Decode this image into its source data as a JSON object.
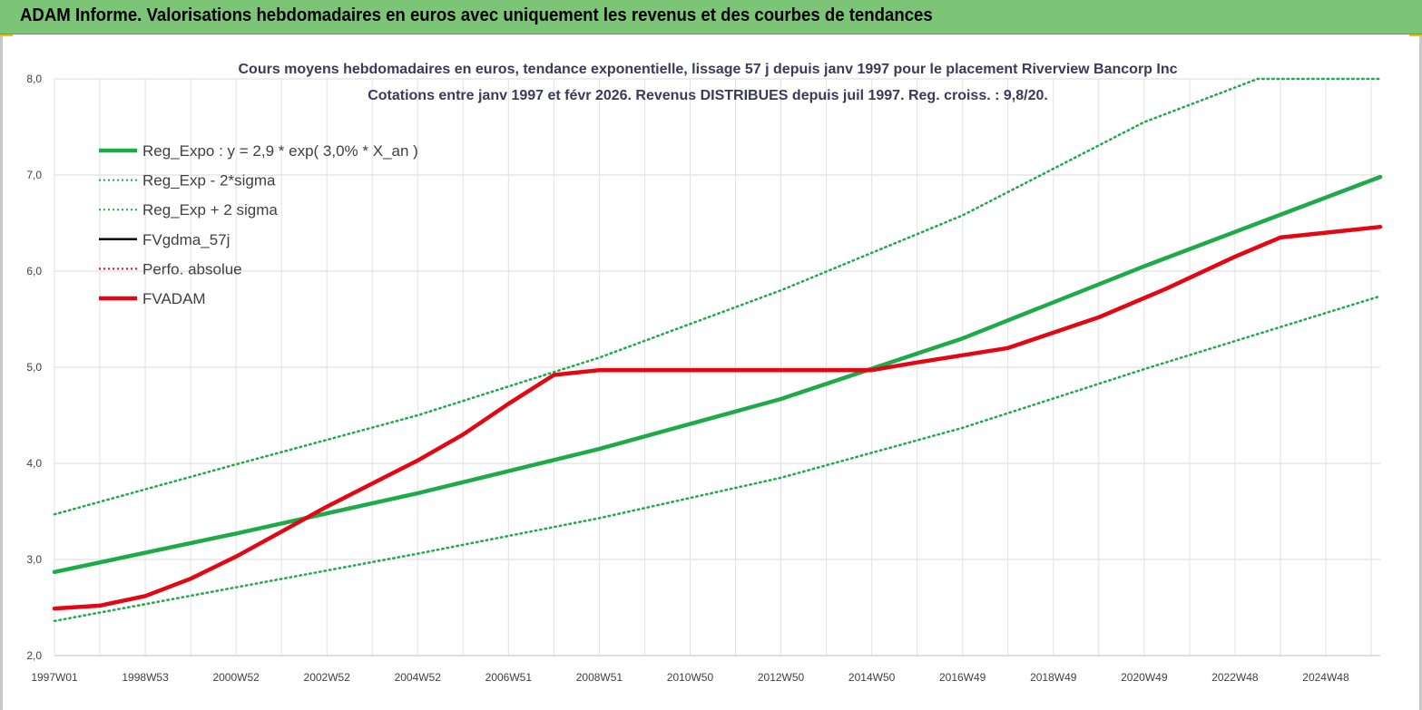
{
  "banner": {
    "title": "ADAM Informe. Valorisations hebdomadaires en euros avec uniquement les revenus et des courbes de tendances"
  },
  "colors": {
    "banner_bg": "#7cc576",
    "trend": "#1faa4a",
    "adam": "#e30613",
    "fvgdma": "#000000"
  },
  "chart_data": {
    "type": "line",
    "title_line1": "Cours moyens hebdomadaires en euros, tendance exponentielle, lissage 57 j depuis janv 1997 pour le placement Riverview Bancorp Inc",
    "title_line2": "Cotations entre janv 1997 et févr 2026. Revenus DISTRIBUES depuis juil 1997. Reg. croiss. : 9,8/20.",
    "ylim": [
      2.0,
      8.0
    ],
    "y_ticks": [
      "2,0",
      "3,0",
      "4,0",
      "5,0",
      "6,0",
      "7,0",
      "8,0"
    ],
    "x_ticks": [
      "1997W01",
      "1998W53",
      "2000W52",
      "2002W52",
      "2004W52",
      "2006W51",
      "2008W51",
      "2010W50",
      "2012W50",
      "2014W50",
      "2016W49",
      "2018W49",
      "2020W49",
      "2022W48",
      "2024W48"
    ],
    "x_range_years": [
      1997.0,
      2026.2
    ],
    "legend_position": "top-left",
    "grid": true,
    "series": [
      {
        "name": "Reg_Expo : y = 2,9 * exp( 3,0% *  X_an )",
        "style": "solid-thick",
        "color": "#1faa4a",
        "x": [
          1997.0,
          2001.0,
          2005.0,
          2009.0,
          2013.0,
          2017.0,
          2021.0,
          2026.2
        ],
        "y": [
          2.87,
          3.27,
          3.69,
          4.15,
          4.67,
          5.3,
          6.05,
          6.98
        ]
      },
      {
        "name": "Reg_Exp - 2*sigma",
        "style": "dotted",
        "color": "#1faa4a",
        "x": [
          1997.0,
          2001.0,
          2005.0,
          2009.0,
          2013.0,
          2017.0,
          2021.0,
          2026.2
        ],
        "y": [
          2.36,
          2.71,
          3.06,
          3.43,
          3.85,
          4.37,
          4.98,
          5.74
        ]
      },
      {
        "name": "Reg_Exp + 2 sigma",
        "style": "dotted",
        "color": "#1faa4a",
        "x": [
          1997.0,
          2001.0,
          2005.0,
          2009.0,
          2013.0,
          2017.0,
          2021.0,
          2023.5,
          2026.2
        ],
        "y": [
          3.47,
          3.99,
          4.5,
          5.1,
          5.8,
          6.58,
          7.55,
          8.0,
          8.0
        ]
      },
      {
        "name": "FVgdma_57j",
        "style": "solid",
        "color": "#000000",
        "x": [],
        "y": []
      },
      {
        "name": "Perfo. absolue",
        "style": "dotted",
        "color": "#e30613",
        "x": [],
        "y": []
      },
      {
        "name": "FVADAM",
        "style": "solid-thick",
        "color": "#e30613",
        "x": [
          1997.0,
          1998.0,
          1999.0,
          2000.0,
          2001.0,
          2002.0,
          2003.0,
          2004.0,
          2005.0,
          2006.0,
          2007.0,
          2008.0,
          2009.0,
          2011.0,
          2013.0,
          2015.0,
          2016.0,
          2018.0,
          2020.0,
          2021.5,
          2023.0,
          2024.0,
          2025.0,
          2026.2
        ],
        "y": [
          2.49,
          2.52,
          2.62,
          2.8,
          3.03,
          3.29,
          3.55,
          3.79,
          4.03,
          4.3,
          4.62,
          4.92,
          4.97,
          4.97,
          4.97,
          4.97,
          5.05,
          5.2,
          5.52,
          5.82,
          6.15,
          6.35,
          6.4,
          6.46
        ]
      }
    ]
  }
}
